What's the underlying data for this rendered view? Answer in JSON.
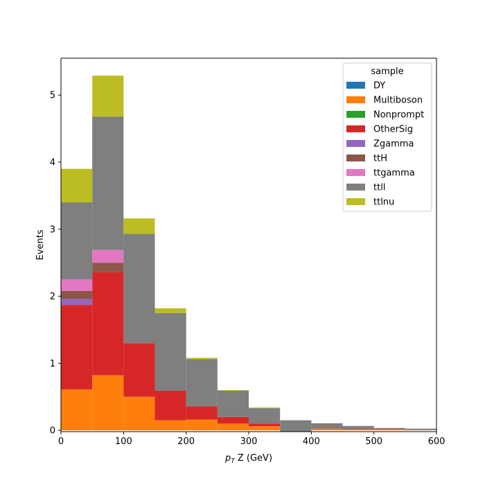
{
  "chart_data": {
    "type": "bar",
    "stacked": true,
    "bin_edges": [
      0,
      50,
      100,
      150,
      200,
      250,
      300,
      350,
      400,
      450,
      500,
      550,
      600
    ],
    "xlabel": "p_T Z (GeV)",
    "xlabel_parts": {
      "main": "p",
      "sub": "T",
      "rest": " Z (GeV)"
    },
    "ylabel": "Events",
    "xlim": [
      0,
      600
    ],
    "ylim": [
      -0.02,
      5.55
    ],
    "xticks": [
      0,
      100,
      200,
      300,
      400,
      500,
      600
    ],
    "yticks": [
      0,
      1,
      2,
      3,
      4,
      5
    ],
    "grid": false,
    "legend": {
      "title": "sample",
      "position": "top-right"
    },
    "series": [
      {
        "name": "DY",
        "color": "#1f77b4",
        "values": [
          0,
          0,
          0,
          0,
          0,
          0,
          0,
          0,
          0,
          0,
          0,
          0
        ]
      },
      {
        "name": "Multiboson",
        "color": "#ff7f0e",
        "values": [
          0.61,
          0.82,
          0.5,
          0.15,
          0.16,
          0.1,
          0.06,
          -0.02,
          0.02,
          0.01,
          0.01,
          0.005
        ]
      },
      {
        "name": "Nonprompt",
        "color": "#2ca02c",
        "values": [
          0,
          0,
          0,
          0,
          0,
          0,
          0,
          0,
          0,
          0,
          0,
          0
        ]
      },
      {
        "name": "OtherSig",
        "color": "#d62728",
        "values": [
          1.26,
          1.54,
          0.8,
          0.44,
          0.2,
          0.1,
          0.04,
          0.0,
          0.005,
          0.005,
          0.005,
          0.0
        ]
      },
      {
        "name": "Zgamma",
        "color": "#9467bd",
        "values": [
          0.09,
          0,
          0,
          0,
          0,
          0,
          0,
          0,
          0,
          0,
          0,
          0
        ]
      },
      {
        "name": "ttH",
        "color": "#8c564b",
        "values": [
          0.12,
          0.14,
          0,
          0,
          0,
          0,
          0,
          0,
          0,
          0,
          0,
          0
        ]
      },
      {
        "name": "ttgamma",
        "color": "#e377c2",
        "values": [
          0.17,
          0.19,
          0,
          0,
          0,
          0,
          0,
          0,
          0,
          0,
          0,
          0
        ]
      },
      {
        "name": "ttll",
        "color": "#7f7f7f",
        "values": [
          1.15,
          1.99,
          1.63,
          1.16,
          0.7,
          0.39,
          0.23,
          0.17,
          0.08,
          0.05,
          0.02,
          0.02
        ]
      },
      {
        "name": "ttlnu",
        "color": "#bcbd22",
        "values": [
          0.5,
          0.61,
          0.23,
          0.07,
          0.02,
          0.01,
          0.01,
          0.0,
          0.0,
          0.0,
          0.0,
          0.0
        ]
      }
    ]
  }
}
